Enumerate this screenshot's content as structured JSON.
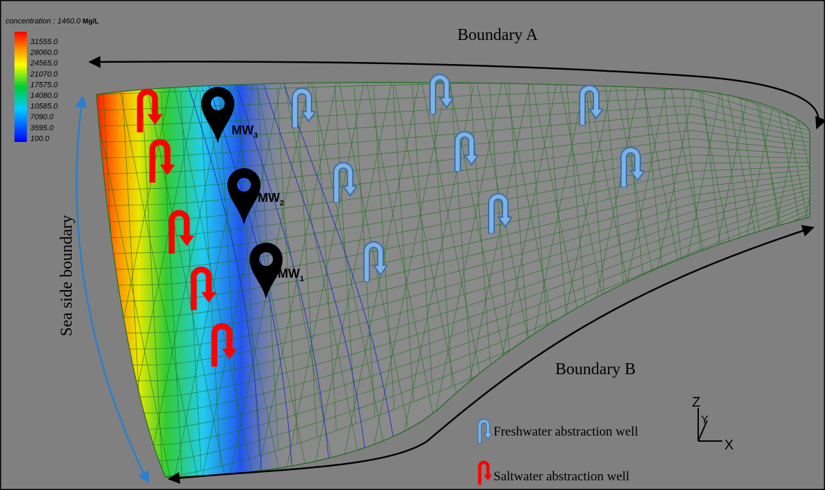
{
  "header": {
    "title": "concentration : 1460.0",
    "unit": "Mg/L"
  },
  "colorbar": {
    "labels": [
      "31555.0",
      "28060.0",
      "24565.0",
      "21070.0",
      "17575.0",
      "14080.0",
      "10585.0",
      "7090.0",
      "3595.0",
      "100.0"
    ]
  },
  "boundaries": {
    "a": "Boundary A",
    "b": "Boundary B",
    "sea": "Sea side boundary"
  },
  "monitoring_wells": [
    {
      "label": "MW",
      "index": "3"
    },
    {
      "label": "MW",
      "index": "2"
    },
    {
      "label": "MW",
      "index": "1"
    }
  ],
  "legend": {
    "freshwater": "Freshwater abstraction well",
    "saltwater": "Saltwater abstraction well"
  },
  "axes": {
    "z": "Z",
    "y": "Y",
    "x": "X"
  }
}
